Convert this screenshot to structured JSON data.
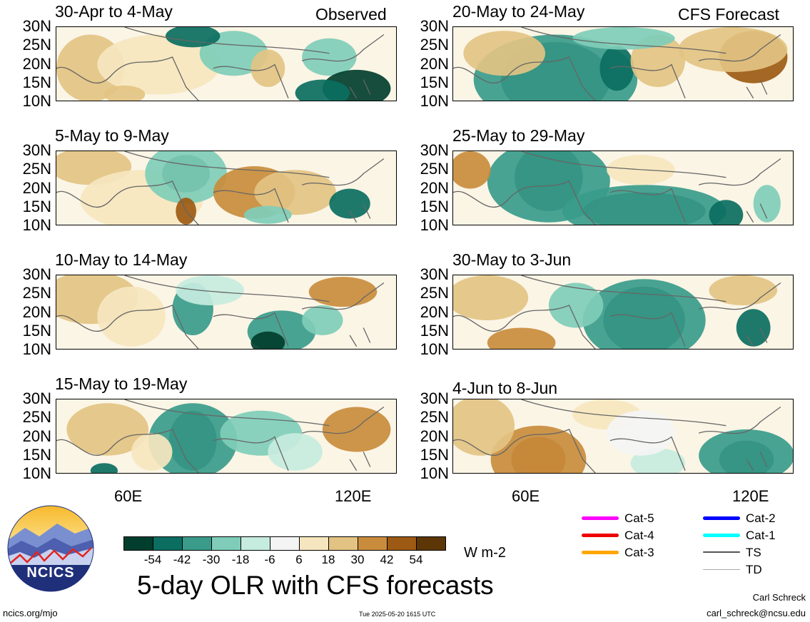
{
  "panels_left": [
    {
      "title": "30-Apr to 4-May",
      "tag": "Observed"
    },
    {
      "title": "5-May to 9-May",
      "tag": ""
    },
    {
      "title": "10-May to 14-May",
      "tag": ""
    },
    {
      "title": "15-May to 19-May",
      "tag": ""
    }
  ],
  "panels_right": [
    {
      "title": "20-May to 24-May",
      "tag": "CFS Forecast"
    },
    {
      "title": "25-May to 29-May",
      "tag": ""
    },
    {
      "title": "30-May to 3-Jun",
      "tag": ""
    },
    {
      "title": "4-Jun to 8-Jun",
      "tag": ""
    }
  ],
  "lat_labels": [
    "30N",
    "25N",
    "20N",
    "15N",
    "10N"
  ],
  "lon_labels": [
    "60E",
    "120E"
  ],
  "colorbar": {
    "colors": [
      "#023e2e",
      "#0b6e61",
      "#3a9b8b",
      "#7fcdb9",
      "#c6ece0",
      "#f4f4f4",
      "#f6e6bf",
      "#e3c383",
      "#c98c3d",
      "#9c5a14",
      "#5c3606"
    ],
    "labels": [
      "-54",
      "-42",
      "-30",
      "-18",
      "-6",
      "6",
      "18",
      "30",
      "42",
      "54"
    ],
    "units": "W m-2"
  },
  "main_title": "5-day OLR with CFS forecasts",
  "logo_text": "NCICS",
  "legend": [
    {
      "label": "Cat-5",
      "color": "#ff00ff"
    },
    {
      "label": "Cat-4",
      "color": "#ee0000"
    },
    {
      "label": "Cat-3",
      "color": "#ffa500"
    },
    {
      "label": "Cat-2",
      "color": "#0000ff"
    },
    {
      "label": "Cat-1",
      "color": "#00ffff"
    },
    {
      "label": "TS",
      "color": "#555555"
    },
    {
      "label": "TD",
      "color": "#aaaaaa"
    }
  ],
  "footer_left": "ncics.org/mjo",
  "footer_center": "Tue 2025-05-20 1615 UTC",
  "author_name": "Carl Schreck",
  "author_email": "carl_schreck@ncsu.edu"
}
